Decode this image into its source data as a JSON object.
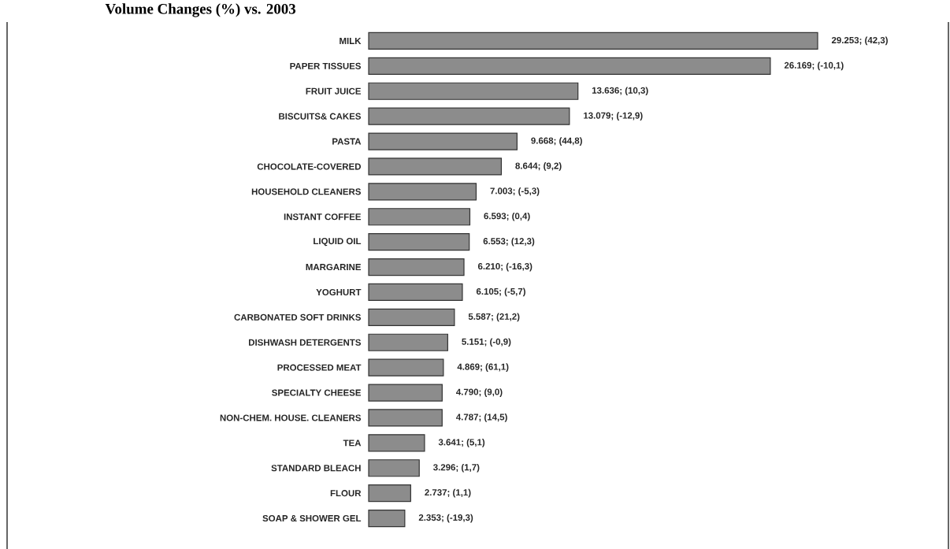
{
  "chart_data": {
    "type": "bar",
    "orientation": "horizontal",
    "title": "Volume Changes (%) vs. 2003",
    "categories": [
      "MILK",
      "PAPER TISSUES",
      "FRUIT JUICE",
      "BISCUITS& CAKES",
      "PASTA",
      "CHOCOLATE-COVERED",
      "HOUSEHOLD CLEANERS",
      "INSTANT COFFEE",
      "LIQUID OIL",
      "MARGARINE",
      "YOGHURT",
      "CARBONATED SOFT DRINKS",
      "DISHWASH DETERGENTS",
      "PROCESSED MEAT",
      "SPECIALTY CHEESE",
      "NON-CHEM. HOUSE. CLEANERS",
      "TEA",
      "STANDARD BLEACH",
      "FLOUR",
      "SOAP & SHOWER GEL"
    ],
    "values": [
      29253,
      26169,
      13636,
      13079,
      9668,
      8644,
      7003,
      6593,
      6553,
      6210,
      6105,
      5587,
      5151,
      4869,
      4790,
      4787,
      3641,
      3296,
      2737,
      2353
    ],
    "value_labels": [
      "29.253; (42,3)",
      "26.169; (-10,1)",
      "13.636; (10,3)",
      "13.079; (-12,9)",
      "9.668; (44,8)",
      "8.644; (9,2)",
      "7.003; (-5,3)",
      "6.593; (0,4)",
      "6.553; (12,3)",
      "6.210; (-16,3)",
      "6.105; (-5,7)",
      "5.587; (21,2)",
      "5.151; (-0,9)",
      "4.869; (61,1)",
      "4.790; (9,0)",
      "4.787; (14,5)",
      "3.641; (5,1)",
      "3.296; (1,7)",
      "2.737; (1,1)",
      "2.353; (-19,3)"
    ],
    "color": "#8c8c8c"
  }
}
